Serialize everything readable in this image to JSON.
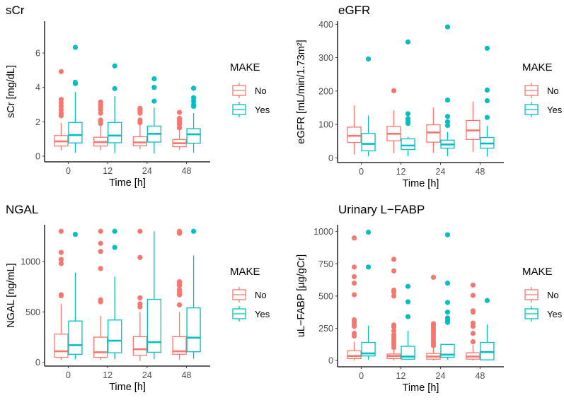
{
  "legend": {
    "title": "MAKE",
    "entries": [
      "No",
      "Yes"
    ],
    "colors": [
      "#F8766D",
      "#00BFC4"
    ]
  },
  "chart_data": [
    {
      "type": "boxplot",
      "title": "sCr",
      "xlabel": "Time [h]",
      "ylabel": "sCr [mg/dL]",
      "categories": [
        "0",
        "12",
        "24",
        "48"
      ],
      "yticks": [
        "0",
        "2",
        "4",
        "6"
      ],
      "ytick_values": [
        0,
        2,
        4,
        6
      ],
      "ylim": [
        -0.33,
        7.85
      ],
      "legend": "right",
      "series": [
        {
          "name": "No",
          "boxes": [
            {
              "lower": 0.34,
              "q1": 0.59,
              "median": 0.86,
              "q3": 1.2,
              "upper": 1.93,
              "outliers": [
                4.92,
                3.3,
                3.1,
                2.9,
                2.7,
                2.5,
                2.35
              ]
            },
            {
              "lower": 0.34,
              "q1": 0.59,
              "median": 0.82,
              "q3": 1.1,
              "upper": 1.85,
              "outliers": [
                3.15,
                3.0,
                2.85,
                2.7,
                2.5,
                2.1,
                2.0,
                1.9
              ]
            },
            {
              "lower": 0.4,
              "q1": 0.6,
              "median": 0.8,
              "q3": 1.13,
              "upper": 1.85,
              "outliers": [
                2.78,
                2.65,
                2.5,
                2.1,
                1.95
              ]
            },
            {
              "lower": 0.35,
              "q1": 0.55,
              "median": 0.75,
              "q3": 0.97,
              "upper": 1.55,
              "outliers": [
                2.55,
                2.2,
                2.1,
                2.0,
                1.85,
                1.65
              ]
            }
          ]
        },
        {
          "name": "Yes",
          "boxes": [
            {
              "lower": 0.2,
              "q1": 0.77,
              "median": 1.23,
              "q3": 1.96,
              "upper": 3.74,
              "outliers": [
                6.33,
                4.3,
                4.22
              ]
            },
            {
              "lower": 0.18,
              "q1": 0.78,
              "median": 1.2,
              "q3": 1.96,
              "upper": 3.48,
              "outliers": [
                5.25,
                3.93
              ]
            },
            {
              "lower": 0.15,
              "q1": 0.82,
              "median": 1.3,
              "q3": 1.75,
              "upper": 2.82,
              "outliers": [
                4.5,
                4.0,
                3.2
              ]
            },
            {
              "lower": 0.2,
              "q1": 0.75,
              "median": 1.27,
              "q3": 1.6,
              "upper": 2.5,
              "outliers": [
                3.95,
                3.4,
                3.2,
                3.0,
                2.9
              ]
            }
          ]
        }
      ]
    },
    {
      "type": "boxplot",
      "title": "eGFR",
      "xlabel": "Time [h]",
      "ylabel": "eGFR [mL/min/1.73m²]",
      "categories": [
        "0",
        "12",
        "24",
        "48"
      ],
      "yticks": [
        "0",
        "100",
        "200",
        "300",
        "400"
      ],
      "ytick_values": [
        0,
        100,
        200,
        300,
        400
      ],
      "ylim": [
        -14,
        409
      ],
      "legend": "right",
      "series": [
        {
          "name": "No",
          "boxes": [
            {
              "lower": 10,
              "q1": 46,
              "median": 66,
              "q3": 92,
              "upper": 157,
              "outliers": []
            },
            {
              "lower": 14,
              "q1": 51,
              "median": 72,
              "q3": 94,
              "upper": 143,
              "outliers": [
                201
              ]
            },
            {
              "lower": 15,
              "q1": 47,
              "median": 76,
              "q3": 99,
              "upper": 150,
              "outliers": []
            },
            {
              "lower": 18,
              "q1": 55,
              "median": 82,
              "q3": 112,
              "upper": 169,
              "outliers": []
            }
          ]
        },
        {
          "name": "Yes",
          "boxes": [
            {
              "lower": 5,
              "q1": 21,
              "median": 42,
              "q3": 73,
              "upper": 127,
              "outliers": [
                296
              ]
            },
            {
              "lower": 5,
              "q1": 25,
              "median": 37,
              "q3": 57,
              "upper": 63,
              "outliers": [
                347,
                132,
                117,
                110,
                103
              ]
            },
            {
              "lower": 5,
              "q1": 29,
              "median": 40,
              "q3": 53,
              "upper": 78,
              "outliers": [
                392,
                173,
                124,
                108,
                97
              ]
            },
            {
              "lower": 4,
              "q1": 29,
              "median": 43,
              "q3": 61,
              "upper": 96,
              "outliers": [
                328,
                203,
                171,
                121
              ]
            }
          ]
        }
      ]
    },
    {
      "type": "boxplot",
      "title": "NGAL",
      "xlabel": "Time [h]",
      "ylabel": "NGAL [ng/mL]",
      "categories": [
        "0",
        "12",
        "24",
        "48"
      ],
      "yticks": [
        "0",
        "500",
        "1000"
      ],
      "ytick_values": [
        0,
        500,
        1000
      ],
      "ylim": [
        -37,
        1365
      ],
      "legend": "right",
      "series": [
        {
          "name": "No",
          "boxes": [
            {
              "lower": 25,
              "q1": 50,
              "median": 110,
              "q3": 280,
              "upper": 580,
              "outliers": [
                1300,
                1090,
                1020,
                980,
                670,
                660
              ]
            },
            {
              "lower": 25,
              "q1": 50,
              "median": 100,
              "q3": 250,
              "upper": 460,
              "outliers": [
                1300,
                1180,
                1100,
                930,
                620,
                600
              ]
            },
            {
              "lower": 15,
              "q1": 70,
              "median": 130,
              "q3": 255,
              "upper": 500,
              "outliers": [
                1300,
                1040,
                640,
                580,
                550
              ]
            },
            {
              "lower": 25,
              "q1": 80,
              "median": 110,
              "q3": 255,
              "upper": 500,
              "outliers": [
                1300,
                1280,
                800,
                780,
                760,
                720,
                690,
                670,
                570
              ]
            }
          ]
        },
        {
          "name": "Yes",
          "boxes": [
            {
              "lower": 30,
              "q1": 80,
              "median": 170,
              "q3": 410,
              "upper": 890,
              "outliers": [
                1270
              ]
            },
            {
              "lower": 30,
              "q1": 95,
              "median": 215,
              "q3": 420,
              "upper": 850,
              "outliers": [
                1300,
                1140
              ]
            },
            {
              "lower": 30,
              "q1": 100,
              "median": 200,
              "q3": 625,
              "upper": 1300,
              "outliers": []
            },
            {
              "lower": 35,
              "q1": 105,
              "median": 245,
              "q3": 540,
              "upper": 1060,
              "outliers": [
                1300
              ]
            }
          ]
        }
      ]
    },
    {
      "type": "boxplot",
      "title": "Urinary L−FABP",
      "xlabel": "Time [h]",
      "ylabel": "uL−FABP [µg/gCr]",
      "categories": [
        "0",
        "12",
        "24",
        "48"
      ],
      "yticks": [
        "0",
        "250",
        "500",
        "750",
        "1000"
      ],
      "ytick_values": [
        0,
        250,
        500,
        750,
        1000
      ],
      "ylim": [
        -49,
        1053
      ],
      "legend": "right",
      "series": [
        {
          "name": "No",
          "boxes": [
            {
              "lower": 0,
              "q1": 15,
              "median": 35,
              "q3": 75,
              "upper": 145,
              "outliers": [
                950,
                725,
                650,
                600,
                510,
                315,
                300,
                280,
                265,
                210,
                190
              ]
            },
            {
              "lower": 0,
              "q1": 15,
              "median": 35,
              "q3": 50,
              "upper": 80,
              "outliers": [
                785,
                695,
                545,
                530,
                500,
                275,
                260,
                230,
                200,
                180,
                160,
                140,
                120,
                100
              ]
            },
            {
              "lower": 0,
              "q1": 10,
              "median": 30,
              "q3": 55,
              "upper": 100,
              "outliers": [
                645,
                285,
                270,
                250,
                230,
                210,
                190,
                170,
                150,
                130,
                115
              ]
            },
            {
              "lower": 0,
              "q1": 10,
              "median": 30,
              "q3": 60,
              "upper": 120,
              "outliers": [
                585,
                505,
                385,
                375,
                290,
                265,
                210,
                145
              ]
            }
          ]
        },
        {
          "name": "Yes",
          "boxes": [
            {
              "lower": 5,
              "q1": 35,
              "median": 55,
              "q3": 140,
              "upper": 270,
              "outliers": [
                995,
                725
              ]
            },
            {
              "lower": 5,
              "q1": 10,
              "median": 30,
              "q3": 110,
              "upper": 230,
              "outliers": [
                575,
                455,
                340
              ]
            },
            {
              "lower": 5,
              "q1": 25,
              "median": 45,
              "q3": 125,
              "upper": 125,
              "outliers": [
                975,
                600,
                450,
                375,
                330,
                310,
                295
              ]
            },
            {
              "lower": 5,
              "q1": 5,
              "median": 65,
              "q3": 140,
              "upper": 280,
              "outliers": [
                465
              ]
            }
          ]
        }
      ]
    }
  ]
}
